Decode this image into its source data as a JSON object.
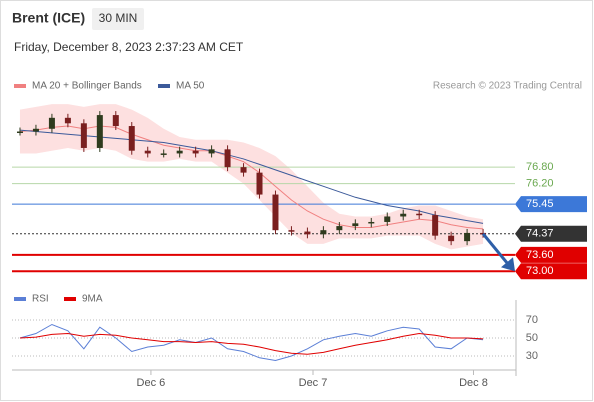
{
  "chart_data": {
    "type": "candlestick",
    "title": "Brent (ICE)",
    "interval": "30 MIN",
    "subtitle": "Friday, December 8, 2023 2:37:23 AM CET",
    "credit": "Research © 2023 Trading Central",
    "xlim": [
      -0.5,
      31
    ],
    "ylim": [
      72.5,
      79.25
    ],
    "xticks": [
      {
        "value": 8.2,
        "label": "Dec 6"
      },
      {
        "value": 18.35,
        "label": "Dec 7"
      },
      {
        "value": 28.4,
        "label": "Dec 8"
      }
    ],
    "close": {
      "name": "Price",
      "up_color": "#2f3b1e",
      "down_color": "#7a1f1f",
      "values": [
        78.1,
        78.2,
        78.6,
        78.4,
        77.5,
        78.7,
        78.3,
        77.4,
        77.3,
        77.3,
        77.4,
        77.3,
        77.45,
        76.8,
        76.6,
        75.8,
        74.5,
        74.45,
        74.35,
        74.5,
        74.65,
        74.75,
        74.8,
        75.0,
        75.1,
        75.05,
        74.3,
        74.1,
        74.4,
        74.37
      ]
    },
    "series": [
      {
        "name": "MA 20 + Bollinger Bands",
        "color": "#f08080",
        "values": [
          78.1,
          78.15,
          78.25,
          78.3,
          78.2,
          78.3,
          78.25,
          78.0,
          77.8,
          77.6,
          77.5,
          77.4,
          77.4,
          77.2,
          77.0,
          76.6,
          76.1,
          75.6,
          75.2,
          74.9,
          74.7,
          74.6,
          74.6,
          74.7,
          74.8,
          74.9,
          74.85,
          74.7,
          74.6,
          74.55
        ],
        "upper": [
          78.9,
          79.0,
          79.1,
          79.1,
          79.0,
          79.1,
          79.1,
          78.9,
          78.6,
          78.2,
          77.9,
          77.8,
          77.8,
          77.8,
          77.7,
          77.5,
          77.2,
          76.7,
          76.1,
          75.5,
          75.1,
          75.0,
          75.0,
          75.1,
          75.3,
          75.4,
          75.4,
          75.2,
          75.0,
          74.9
        ],
        "lower": [
          77.3,
          77.3,
          77.4,
          77.5,
          77.4,
          77.5,
          77.4,
          77.1,
          77.0,
          77.0,
          77.1,
          77.0,
          77.0,
          76.6,
          76.2,
          75.6,
          75.0,
          74.4,
          74.0,
          74.0,
          74.2,
          74.2,
          74.2,
          74.3,
          74.3,
          74.3,
          74.0,
          73.8,
          73.9,
          74.0
        ],
        "band_color": "#fde0e0"
      },
      {
        "name": "MA 50",
        "color": "#3c5a9a",
        "values": [
          78.15,
          78.1,
          78.05,
          78.0,
          77.95,
          77.9,
          77.85,
          77.8,
          77.75,
          77.7,
          77.6,
          77.5,
          77.4,
          77.25,
          77.1,
          76.9,
          76.7,
          76.5,
          76.3,
          76.1,
          75.9,
          75.7,
          75.55,
          75.4,
          75.3,
          75.2,
          75.05,
          74.95,
          74.85,
          74.75
        ]
      }
    ],
    "levels": [
      {
        "value": 76.8,
        "label": "76.80",
        "color": "#6aa84f",
        "boxed": false
      },
      {
        "value": 76.2,
        "label": "76.20",
        "color": "#6aa84f",
        "boxed": false
      },
      {
        "value": 75.45,
        "label": "75.45",
        "color": "#3c78d8",
        "boxed": true
      },
      {
        "value": 74.37,
        "label": "74.37",
        "color": "#333333",
        "boxed": true
      },
      {
        "value": 73.6,
        "label": "73.60",
        "color": "#e00000",
        "boxed": true
      },
      {
        "value": 73.0,
        "label": "73.00",
        "color": "#e00000",
        "boxed": true
      }
    ],
    "rsi": {
      "ylim": [
        10,
        90
      ],
      "yticks": [
        70,
        50,
        30
      ],
      "series": [
        {
          "name": "RSI",
          "color": "#5b7fd6",
          "values": [
            50,
            55,
            65,
            58,
            38,
            62,
            50,
            35,
            40,
            42,
            48,
            45,
            50,
            38,
            35,
            28,
            25,
            30,
            38,
            48,
            52,
            55,
            52,
            58,
            62,
            60,
            40,
            38,
            50,
            48
          ]
        },
        {
          "name": "9MA",
          "color": "#e00000",
          "values": [
            50,
            51,
            54,
            55,
            52,
            54,
            53,
            50,
            48,
            46,
            46,
            45,
            46,
            44,
            43,
            40,
            36,
            33,
            32,
            34,
            38,
            42,
            45,
            48,
            52,
            55,
            53,
            50,
            50,
            49
          ]
        }
      ]
    }
  }
}
